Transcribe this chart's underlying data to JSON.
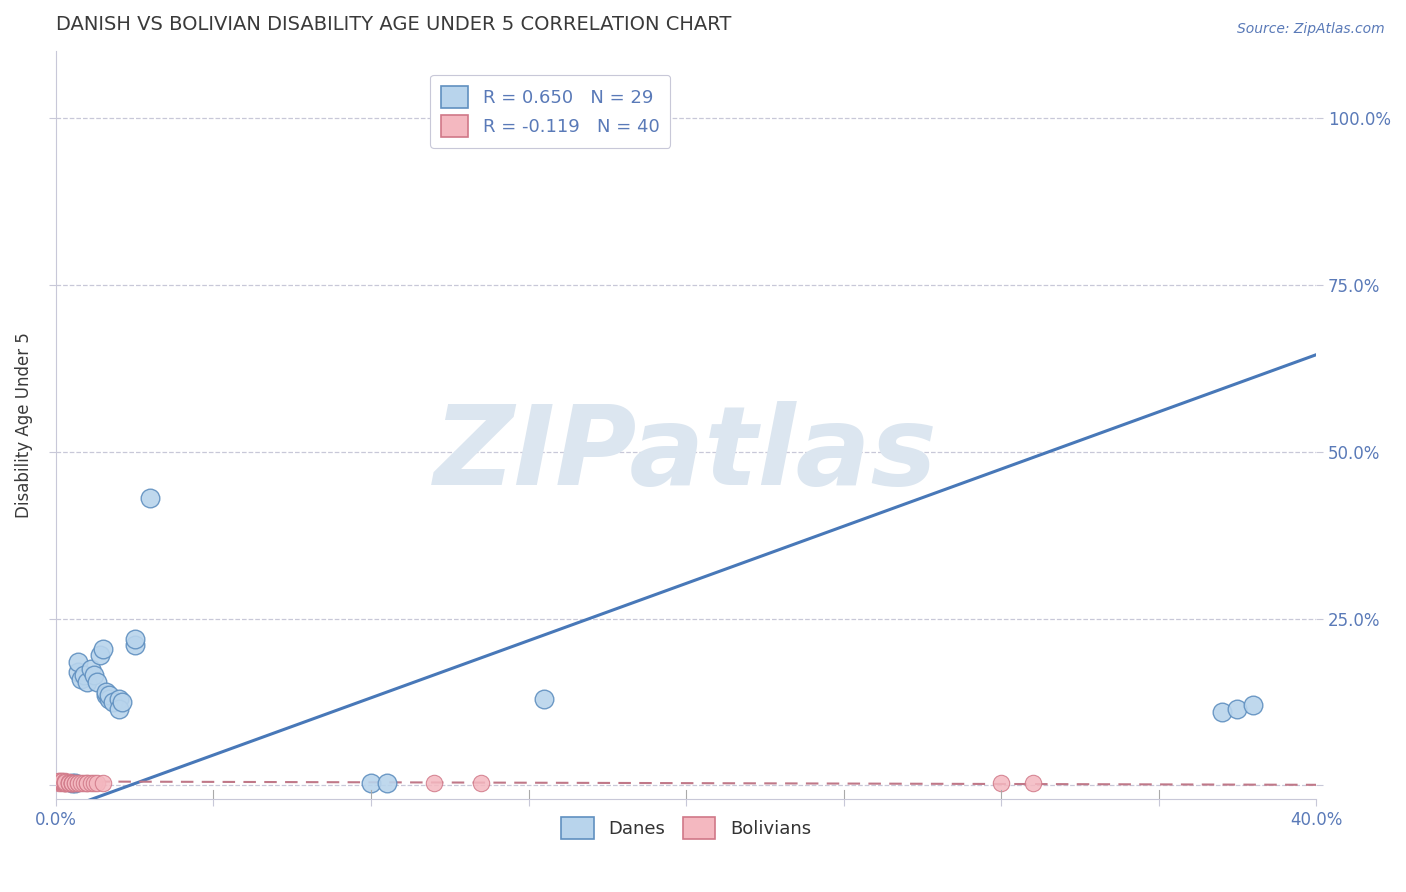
{
  "title": "DANISH VS BOLIVIAN DISABILITY AGE UNDER 5 CORRELATION CHART",
  "source_text": "Source: ZipAtlas.com",
  "ylabel": "Disability Age Under 5",
  "xlim": [
    0.0,
    0.4
  ],
  "ylim": [
    -0.02,
    1.1
  ],
  "xtick_vals": [
    0.0,
    0.05,
    0.1,
    0.15,
    0.2,
    0.25,
    0.3,
    0.35,
    0.4
  ],
  "xtick_labels": [
    "0.0%",
    "",
    "",
    "",
    "",
    "",
    "",
    "",
    "40.0%"
  ],
  "ytick_vals": [
    0.0,
    0.25,
    0.5,
    0.75,
    1.0
  ],
  "ytick_labels_left": [
    "",
    "",
    "",
    "",
    ""
  ],
  "ytick_labels_right": [
    "",
    "25.0%",
    "50.0%",
    "75.0%",
    "100.0%"
  ],
  "title_color": "#3a3a3a",
  "title_fontsize": 14,
  "tick_color": "#5a7ab8",
  "grid_color": "#c8c8d8",
  "background_color": "#ffffff",
  "watermark_text": "ZIPatlas",
  "watermark_color": "#dce6f0",
  "watermark_fontsize": 80,
  "legend_R_dane": "R = 0.650",
  "legend_N_dane": "N = 29",
  "legend_R_bolivian": "R = -0.119",
  "legend_N_bolivian": "N = 40",
  "legend_label_dane": "Danes",
  "legend_label_bolivian": "Bolivians",
  "dane_color": "#b8d4ec",
  "dane_edge_color": "#6090c0",
  "bolivian_color": "#f4b8c0",
  "bolivian_edge_color": "#d07888",
  "regression_dane_color": "#4878b8",
  "regression_bolivian_color": "#c07888",
  "regression_dane_x0": 0.0,
  "regression_dane_y0": -0.04,
  "regression_dane_x1": 0.4,
  "regression_dane_y1": 0.645,
  "regression_bolivian_x0": 0.0,
  "regression_bolivian_y0": 0.006,
  "regression_bolivian_x1": 0.4,
  "regression_bolivian_y1": 0.001,
  "dane_x": [
    0.005,
    0.006,
    0.007,
    0.007,
    0.008,
    0.009,
    0.01,
    0.011,
    0.012,
    0.013,
    0.014,
    0.015,
    0.016,
    0.016,
    0.017,
    0.017,
    0.018,
    0.02,
    0.02,
    0.021,
    0.025,
    0.025,
    0.03,
    0.1,
    0.105,
    0.155,
    0.37,
    0.375,
    0.38
  ],
  "dane_y": [
    0.003,
    0.003,
    0.17,
    0.185,
    0.16,
    0.165,
    0.155,
    0.175,
    0.165,
    0.155,
    0.195,
    0.205,
    0.135,
    0.14,
    0.13,
    0.135,
    0.125,
    0.13,
    0.115,
    0.125,
    0.21,
    0.22,
    0.43,
    0.003,
    0.003,
    0.13,
    0.11,
    0.115,
    0.12
  ],
  "bolivian_x": [
    0.001,
    0.001,
    0.001,
    0.001,
    0.002,
    0.002,
    0.002,
    0.002,
    0.003,
    0.003,
    0.003,
    0.003,
    0.003,
    0.003,
    0.003,
    0.004,
    0.004,
    0.004,
    0.004,
    0.005,
    0.005,
    0.005,
    0.005,
    0.005,
    0.006,
    0.006,
    0.007,
    0.007,
    0.008,
    0.009,
    0.01,
    0.01,
    0.011,
    0.012,
    0.013,
    0.015,
    0.12,
    0.135,
    0.3,
    0.31
  ],
  "bolivian_y": [
    0.004,
    0.005,
    0.006,
    0.007,
    0.004,
    0.005,
    0.006,
    0.007,
    0.003,
    0.004,
    0.005,
    0.006,
    0.003,
    0.004,
    0.005,
    0.003,
    0.004,
    0.005,
    0.003,
    0.003,
    0.004,
    0.003,
    0.004,
    0.003,
    0.003,
    0.004,
    0.003,
    0.004,
    0.003,
    0.003,
    0.003,
    0.003,
    0.003,
    0.003,
    0.003,
    0.003,
    0.003,
    0.003,
    0.003,
    0.003
  ]
}
